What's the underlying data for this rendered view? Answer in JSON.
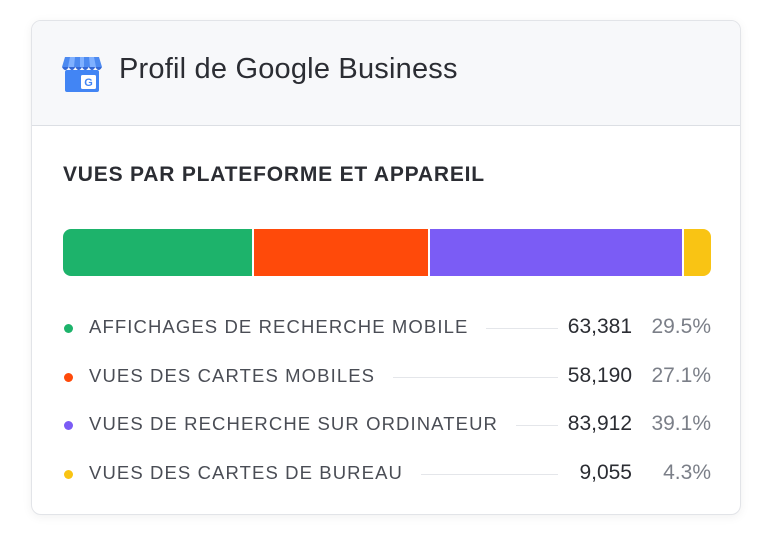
{
  "header": {
    "title": "Profil de Google Business",
    "icon": "google-business-profile-icon"
  },
  "section": {
    "title": "VUES PAR PLATEFORME ET APPAREIL"
  },
  "chart_data": {
    "type": "bar",
    "stacked": true,
    "categories": [
      "AFFICHAGES DE RECHERCHE MOBILE",
      "VUES DES CARTES MOBILES",
      "VUES DE RECHERCHE SUR ORDINATEUR",
      "VUES DES CARTES DE BUREAU"
    ],
    "values": [
      63381,
      58190,
      83912,
      9055
    ],
    "percentages": [
      29.5,
      27.1,
      39.1,
      4.3
    ],
    "colors": [
      "#1db36b",
      "#ff4a0a",
      "#7b5cf5",
      "#f9c414"
    ]
  },
  "legend": [
    {
      "label": "AFFICHAGES DE RECHERCHE MOBILE",
      "value": "63,381",
      "percent": "29.5%",
      "color": "#1db36b"
    },
    {
      "label": "VUES DES CARTES MOBILES",
      "value": "58,190",
      "percent": "27.1%",
      "color": "#ff4a0a"
    },
    {
      "label": "VUES DE RECHERCHE SUR ORDINATEUR",
      "value": "83,912",
      "percent": "39.1%",
      "color": "#7b5cf5"
    },
    {
      "label": "VUES DES CARTES DE BUREAU",
      "value": "9,055",
      "percent": "4.3%",
      "color": "#f9c414"
    }
  ]
}
